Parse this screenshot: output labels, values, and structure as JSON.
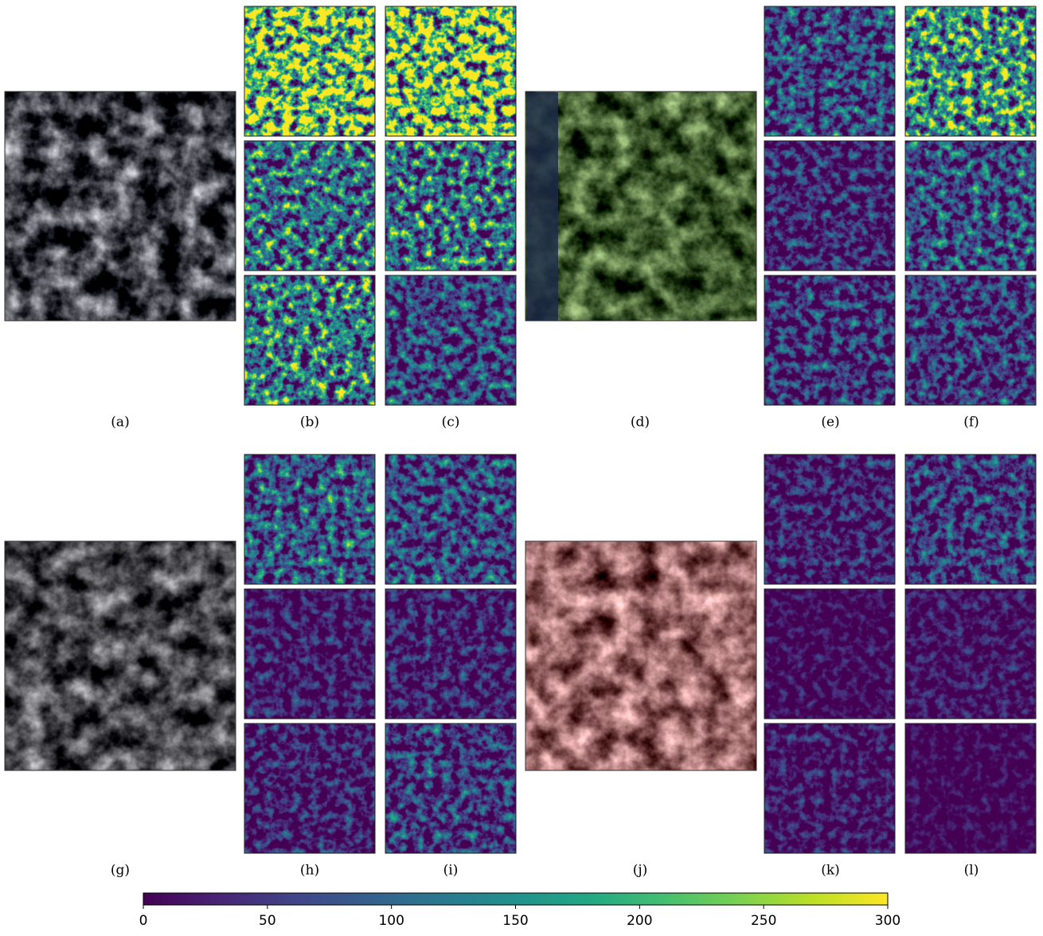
{
  "panels": [
    "(a)",
    "(b)",
    "(c)",
    "(d)",
    "(e)",
    "(f)",
    "(g)",
    "(h)",
    "(i)",
    "(j)",
    "(k)",
    "(l)"
  ],
  "colorbar": {
    "range": [
      0,
      300
    ],
    "ticks": [
      0,
      50,
      100,
      150,
      200,
      250,
      300
    ]
  }
}
